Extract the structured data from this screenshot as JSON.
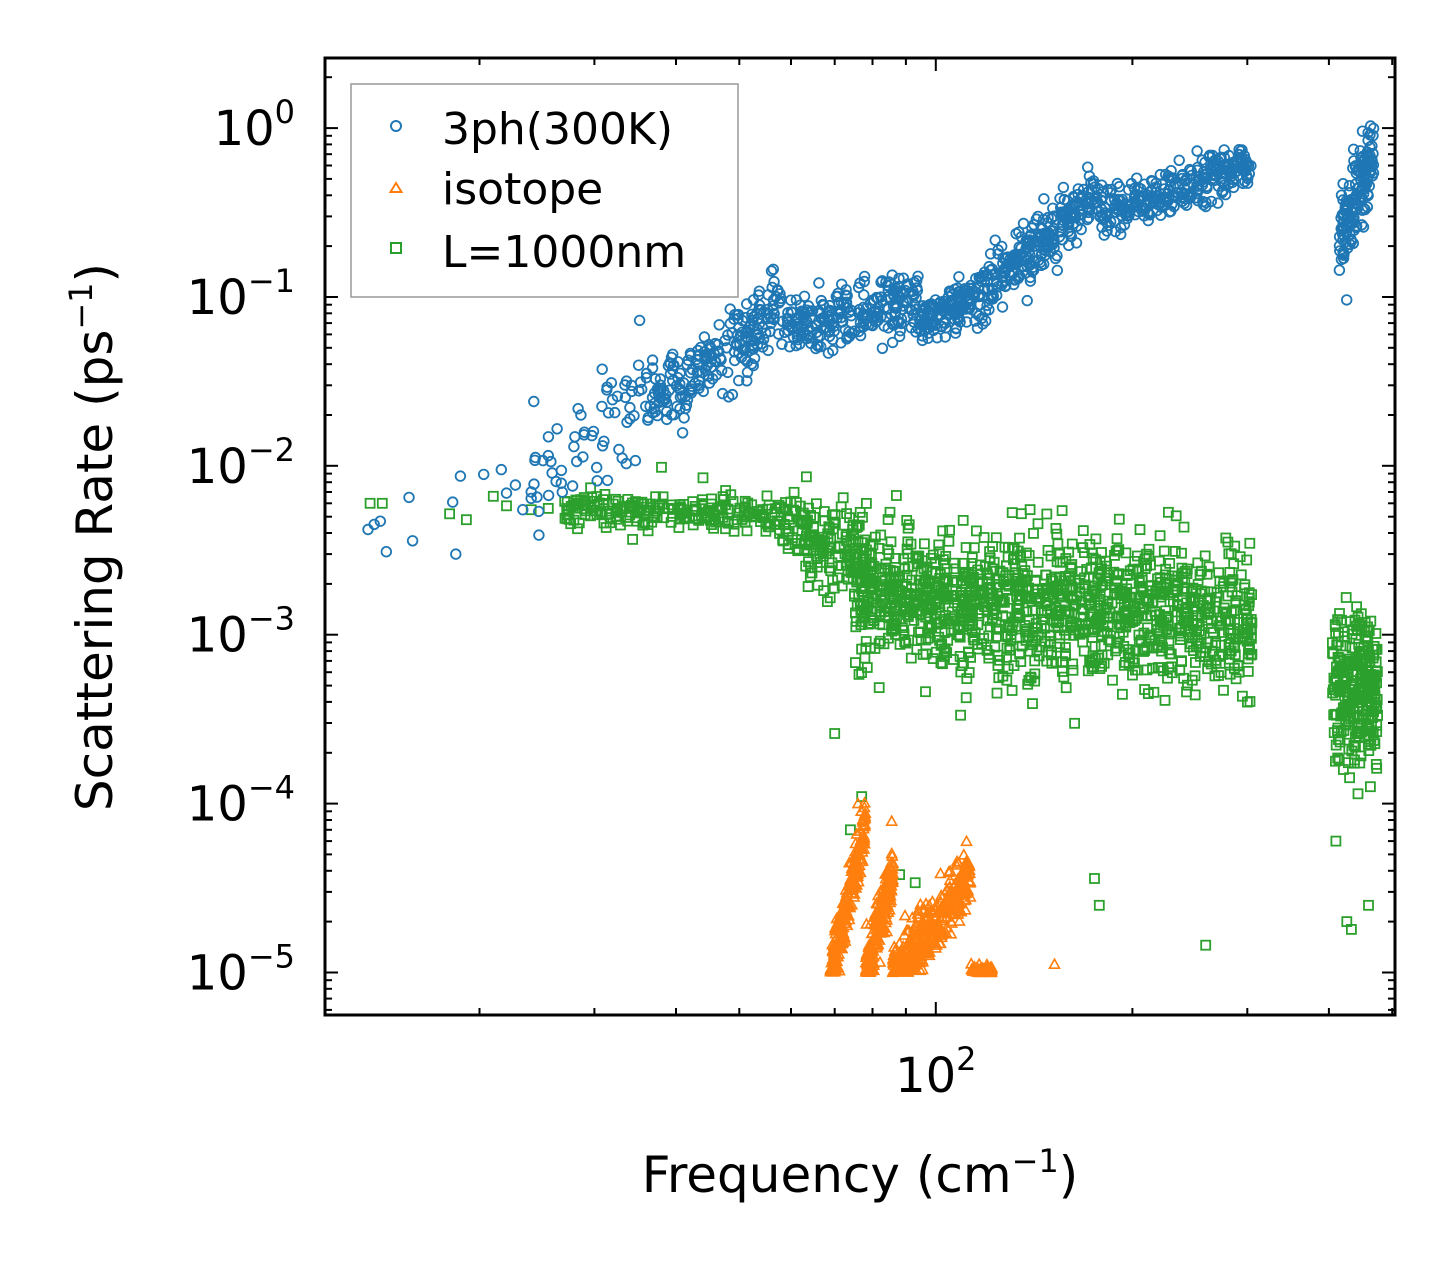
{
  "chart_data": {
    "type": "scatter",
    "title": "",
    "xlabel": {
      "main": "Frequency (cm",
      "sup": "−1",
      "close": ")"
    },
    "ylabel": {
      "main": "Scattering Rate (ps",
      "sup": "−1",
      "close": ")"
    },
    "xscale": "log",
    "yscale": "log",
    "xlim": [
      11.6,
      505
    ],
    "ylim": [
      5.6e-06,
      2.6
    ],
    "x_ticks": [
      {
        "value": 100,
        "base": "10",
        "exp": "2"
      }
    ],
    "y_ticks": [
      {
        "value": 1,
        "base": "10",
        "exp": "0"
      },
      {
        "value": 0.1,
        "base": "10",
        "exp": "−1"
      },
      {
        "value": 0.01,
        "base": "10",
        "exp": "−2"
      },
      {
        "value": 0.001,
        "base": "10",
        "exp": "−3"
      },
      {
        "value": 0.0001,
        "base": "10",
        "exp": "−4"
      },
      {
        "value": 1e-05,
        "base": "10",
        "exp": "−5"
      }
    ],
    "legend_position": "top-left",
    "series": [
      {
        "name": "3ph(300K)",
        "marker": "circle",
        "color": "#1f77b4",
        "generated": 1400,
        "points": [
          [
            13.5,
            0.0042
          ],
          [
            13.8,
            0.0045
          ],
          [
            14.1,
            0.0047
          ],
          [
            14.4,
            0.0031
          ],
          [
            15.6,
            0.0065
          ],
          [
            15.8,
            0.0036
          ],
          [
            18.2,
            0.0061
          ],
          [
            18.4,
            0.003
          ],
          [
            18.7,
            0.0087
          ],
          [
            20.3,
            0.0089
          ],
          [
            21.6,
            0.0095
          ],
          [
            22.0,
            0.0069
          ],
          [
            22.7,
            0.0077
          ],
          [
            23.3,
            0.0055
          ],
          [
            24.0,
            0.007
          ],
          [
            25.5,
            0.0115
          ],
          [
            26.7,
            0.0094
          ],
          [
            27.9,
            0.013
          ],
          [
            28.6,
            0.02
          ],
          [
            28.8,
            0.0113
          ],
          [
            29.9,
            0.016
          ],
          [
            30.8,
            0.0225
          ],
          [
            32.7,
            0.0125
          ],
          [
            34.0,
            0.019
          ]
        ],
        "segments": [
          {
            "x": [
              24,
              36
            ],
            "y": [
              0.008,
              0.03
            ],
            "spread": 0.35,
            "n": 120
          },
          {
            "x": [
              36,
              58
            ],
            "y": [
              0.022,
              0.085
            ],
            "spread": 0.25,
            "n": 520
          },
          {
            "x": [
              58,
              95
            ],
            "y": [
              0.065,
              0.095
            ],
            "spread": 0.2,
            "n": 560
          },
          {
            "x": [
              95,
              115
            ],
            "y": [
              0.07,
              0.1
            ],
            "spread": 0.15,
            "n": 300
          },
          {
            "x": [
              115,
              178
            ],
            "y": [
              0.1,
              0.42
            ],
            "spread": 0.2,
            "n": 620
          },
          {
            "x": [
              178,
              305
            ],
            "y": [
              0.3,
              0.62
            ],
            "spread": 0.15,
            "n": 640
          },
          {
            "x": [
              415,
              470
            ],
            "y": [
              0.22,
              0.75
            ],
            "spread": 0.28,
            "n": 340
          }
        ]
      },
      {
        "name": "isotope",
        "marker": "triangle",
        "color": "#ff7f0e",
        "generated": 900,
        "points": [
          [
            76.0,
            0.0001
          ],
          [
            152.0,
            1.12e-05
          ]
        ],
        "segments": [
          {
            "x": [
              69,
              78
            ],
            "y": [
              1e-05,
              7e-05
            ],
            "spread": 0.2,
            "n": 220
          },
          {
            "x": [
              78,
              86
            ],
            "y": [
              1e-05,
              4e-05
            ],
            "spread": 0.2,
            "n": 200
          },
          {
            "x": [
              86,
              113
            ],
            "y": [
              1e-05,
              3.5e-05
            ],
            "spread": 0.2,
            "n": 340
          },
          {
            "x": [
              113,
              122
            ],
            "y": [
              1e-05,
              1e-05
            ],
            "spread": 0.05,
            "n": 60
          }
        ]
      },
      {
        "name": "L=1000nm",
        "marker": "square",
        "color": "#2ca02c",
        "generated": 2000,
        "points": [
          [
            13.6,
            0.006
          ],
          [
            14.2,
            0.006
          ],
          [
            18.0,
            0.0052
          ],
          [
            19.1,
            0.0048
          ],
          [
            21.0,
            0.0066
          ],
          [
            22.0,
            0.0058
          ],
          [
            24.0,
            0.0055
          ],
          [
            25.5,
            0.0056
          ],
          [
            30.0,
            0.0058
          ],
          [
            38.0,
            0.0098
          ],
          [
            44.0,
            0.0085
          ],
          [
            70.0,
            0.00026
          ],
          [
            74.0,
            7e-05
          ],
          [
            77.0,
            0.00011
          ],
          [
            88.0,
            3.8e-05
          ],
          [
            93.0,
            3.4e-05
          ],
          [
            175.0,
            3.6e-05
          ],
          [
            178.0,
            2.5e-05
          ],
          [
            259.0,
            1.45e-05
          ],
          [
            410.0,
            6e-05
          ],
          [
            426.0,
            2e-05
          ],
          [
            433.0,
            1.8e-05
          ],
          [
            460.0,
            2.5e-05
          ]
        ],
        "segments": [
          {
            "x": [
              27,
              58
            ],
            "y": [
              0.0055,
              0.0052
            ],
            "spread": 0.12,
            "n": 420
          },
          {
            "x": [
              58,
              80
            ],
            "y": [
              0.0045,
              0.0025
            ],
            "spread": 0.3,
            "n": 320
          },
          {
            "x": [
              75,
              305
            ],
            "y": [
              0.0018,
              0.0012
            ],
            "spread": 0.48,
            "n": 2400
          },
          {
            "x": [
              405,
              475
            ],
            "y": [
              0.0005,
              0.0005
            ],
            "spread": 0.5,
            "n": 520
          }
        ]
      }
    ]
  }
}
